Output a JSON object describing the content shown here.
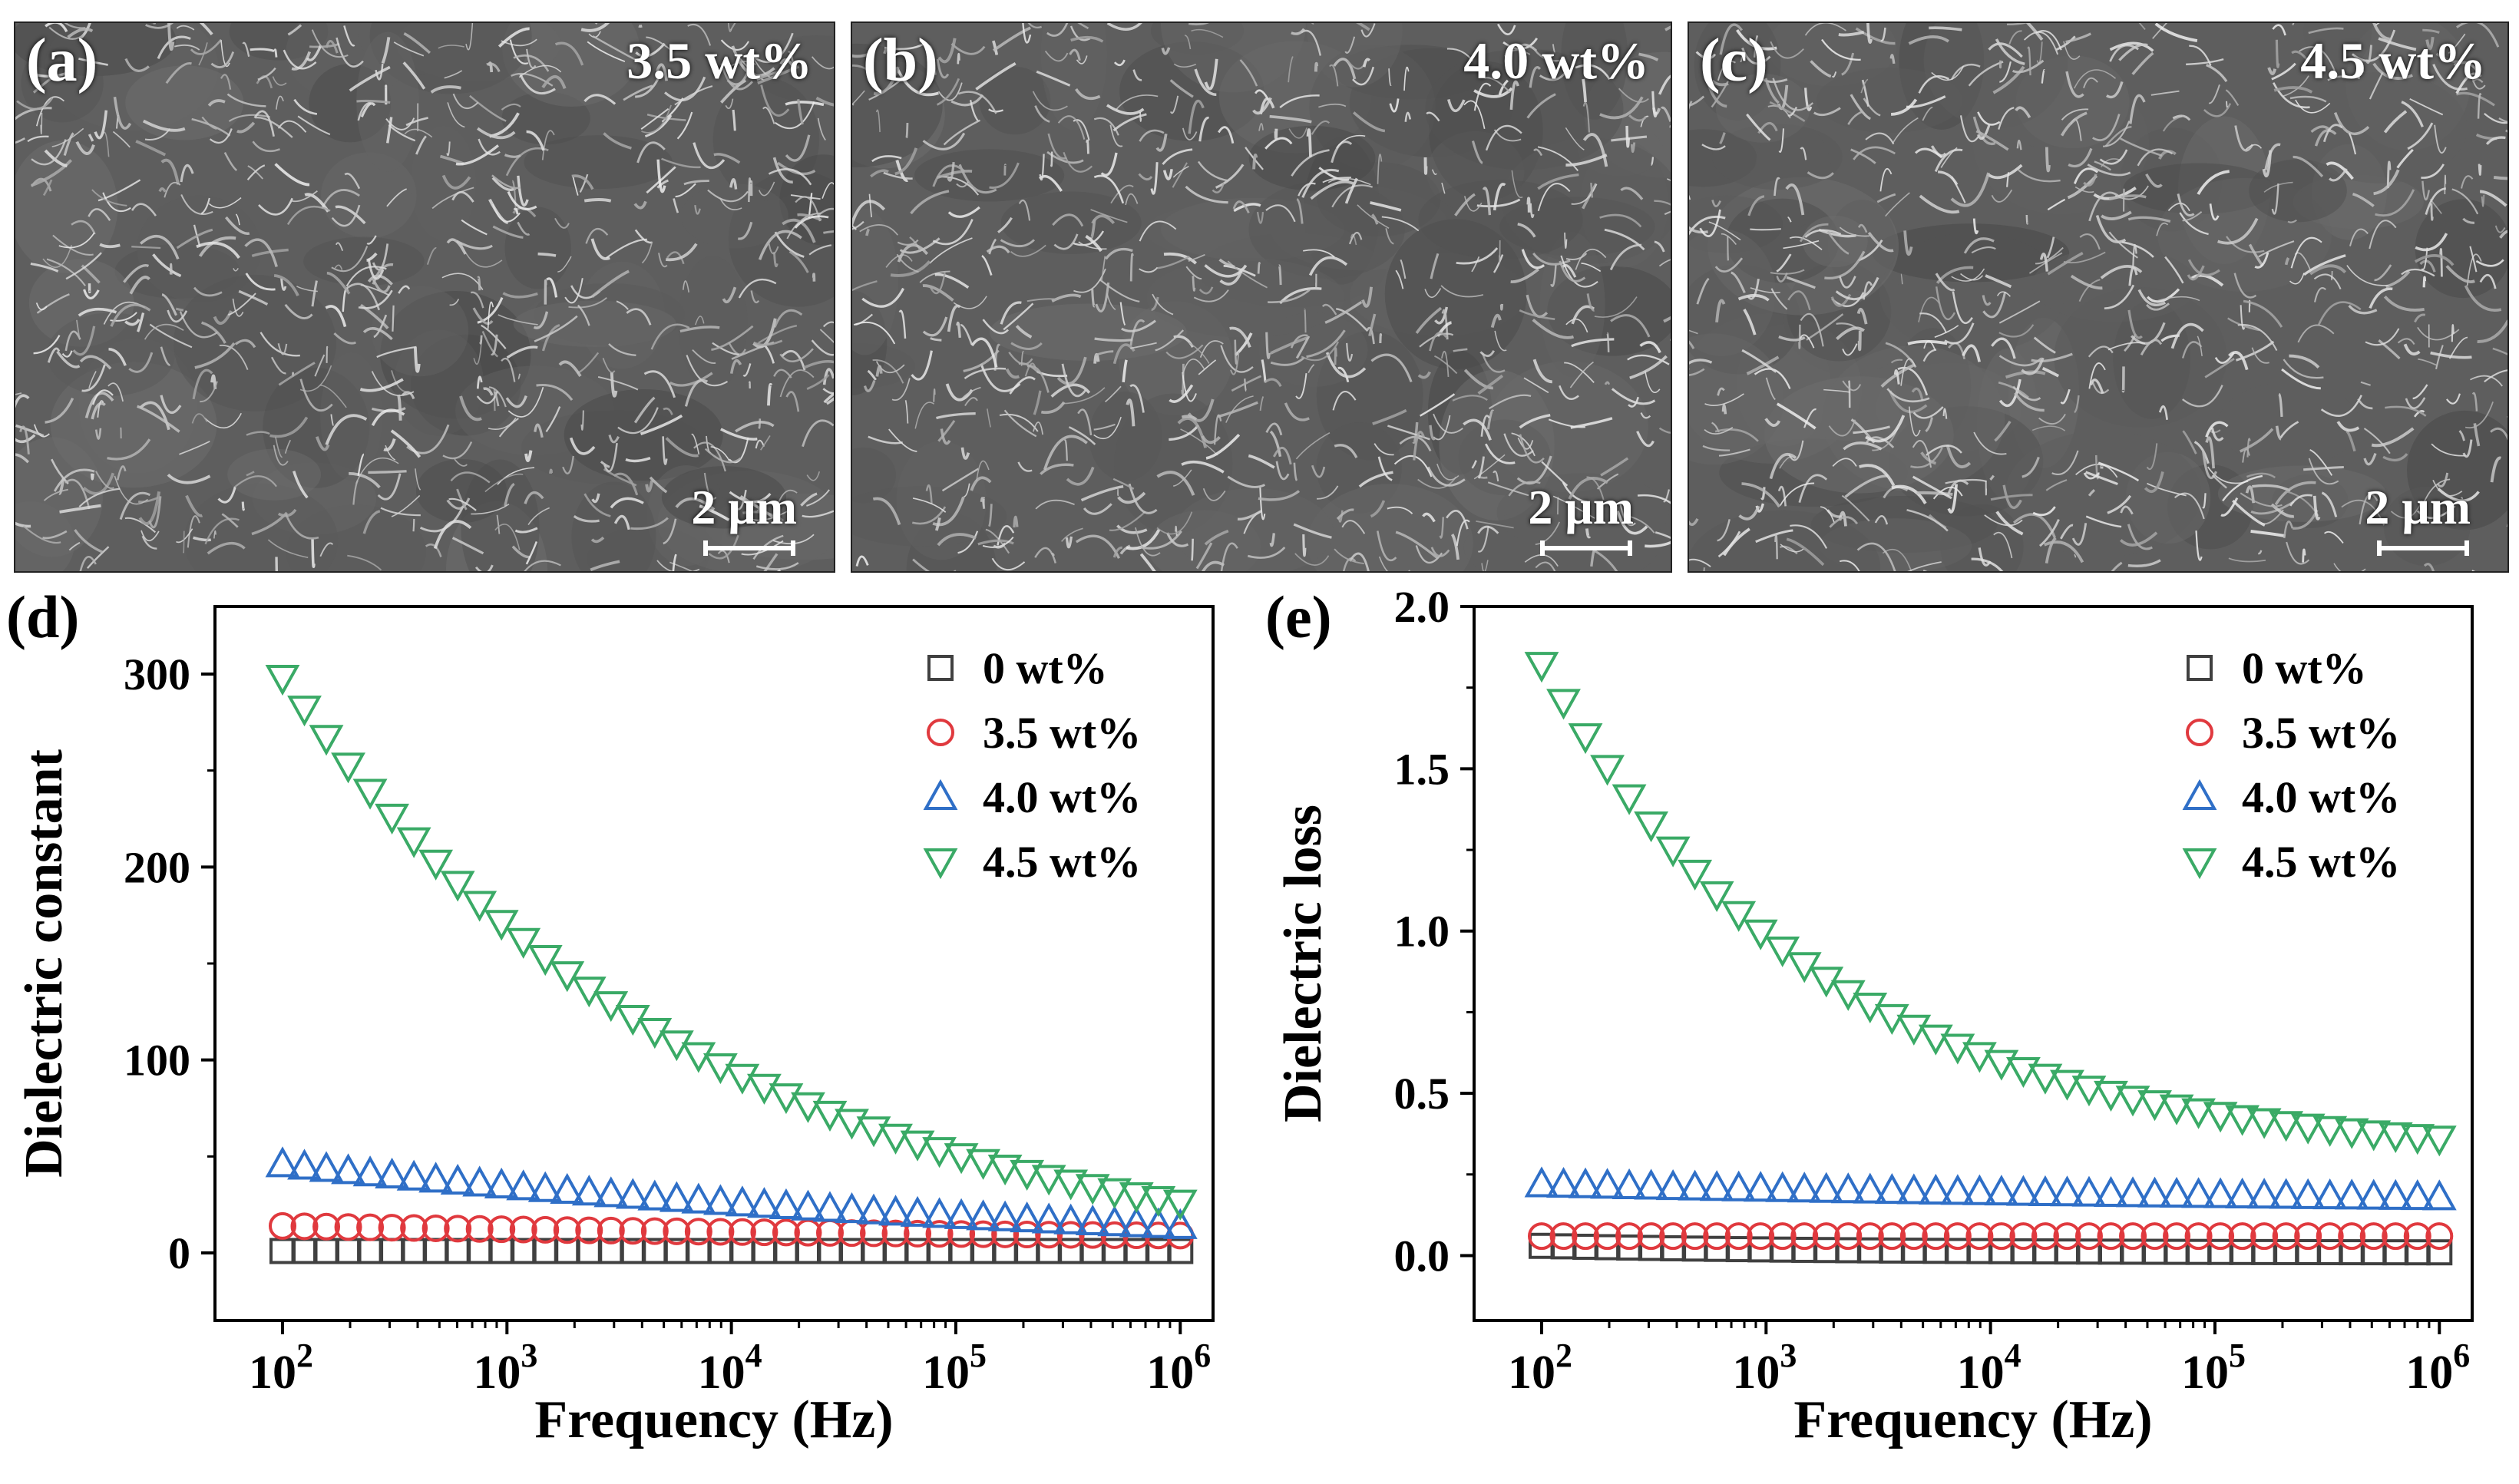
{
  "sem_panels": [
    {
      "letter": "(a)",
      "concentration": "3.5 wt%",
      "scale_label": "2 μm"
    },
    {
      "letter": "(b)",
      "concentration": "4.0 wt%",
      "scale_label": "2 μm"
    },
    {
      "letter": "(c)",
      "concentration": "4.5 wt%",
      "scale_label": "2 μm"
    }
  ],
  "colors": {
    "s0": "#404040",
    "s35": "#e0393e",
    "s40": "#2f6fc7",
    "s45": "#3aaa66"
  },
  "chart_data": [
    {
      "panel": "(d)",
      "type": "scatter",
      "xscale": "log",
      "xlim": [
        50,
        1400000
      ],
      "ylim": [
        -35,
        335
      ],
      "xlabel": "Frequency (Hz)",
      "ylabel": "Dielectric constant",
      "xticks": [
        {
          "v": 100,
          "base": "10",
          "exp": "2"
        },
        {
          "v": 1000,
          "base": "10",
          "exp": "3"
        },
        {
          "v": 10000,
          "base": "10",
          "exp": "4"
        },
        {
          "v": 100000,
          "base": "10",
          "exp": "5"
        },
        {
          "v": 1000000,
          "base": "10",
          "exp": "6"
        }
      ],
      "yticks": [
        0,
        100,
        200,
        300
      ],
      "legend_position": "top-right",
      "x": [
        100,
        1000000
      ],
      "series": [
        {
          "name": "0 wt%",
          "marker": "square",
          "color": "#404040",
          "start": 1,
          "end": 1,
          "k": 1
        },
        {
          "name": "3.5 wt%",
          "marker": "circle",
          "color": "#e0393e",
          "start": 14,
          "end": 9,
          "k": 1
        },
        {
          "name": "4.0 wt%",
          "marker": "triangle-up",
          "color": "#2f6fc7",
          "start": 46,
          "end": 14,
          "k": 1
        },
        {
          "name": "4.5 wt%",
          "marker": "triangle-down",
          "color": "#3aaa66",
          "start": 298,
          "end": 26,
          "k": 2.2
        }
      ]
    },
    {
      "panel": "(e)",
      "type": "scatter",
      "xscale": "log",
      "xlim": [
        50,
        1400000
      ],
      "ylim": [
        -0.2,
        2.0
      ],
      "xlabel": "Frequency (Hz)",
      "ylabel": "Dielectric loss",
      "xticks": [
        {
          "v": 100,
          "base": "10",
          "exp": "2"
        },
        {
          "v": 1000,
          "base": "10",
          "exp": "3"
        },
        {
          "v": 10000,
          "base": "10",
          "exp": "4"
        },
        {
          "v": 100000,
          "base": "10",
          "exp": "5"
        },
        {
          "v": 1000000,
          "base": "10",
          "exp": "6"
        }
      ],
      "yticks": [
        0.0,
        0.5,
        1.0,
        1.5,
        2.0
      ],
      "legend_position": "top-right",
      "x": [
        100,
        1000000
      ],
      "series": [
        {
          "name": "0 wt%",
          "marker": "square",
          "color": "#404040",
          "start": 0.03,
          "end": 0.01,
          "k": 3
        },
        {
          "name": "3.5 wt%",
          "marker": "circle",
          "color": "#e0393e",
          "start": 0.06,
          "end": 0.06,
          "k": 1
        },
        {
          "name": "4.0 wt%",
          "marker": "triangle-up",
          "color": "#2f6fc7",
          "start": 0.22,
          "end": 0.18,
          "k": 1
        },
        {
          "name": "4.5 wt%",
          "marker": "triangle-down",
          "color": "#3aaa66",
          "start": 1.82,
          "end": 0.36,
          "k": 3.2
        }
      ]
    }
  ]
}
